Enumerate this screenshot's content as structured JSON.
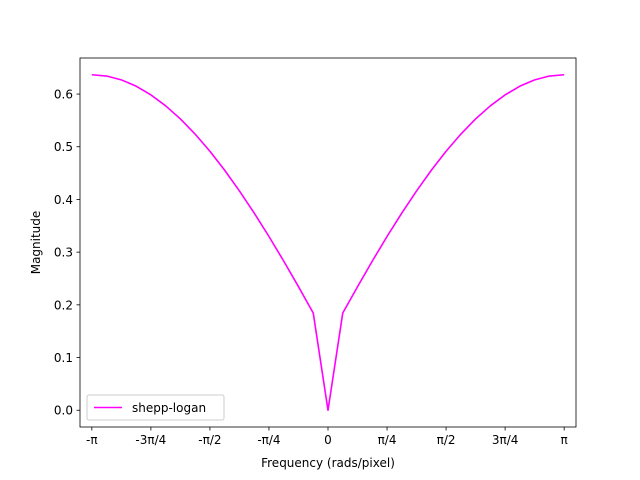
{
  "chart_data": {
    "type": "line",
    "xlabel": "Frequency (rads/pixel)",
    "ylabel": "Magnitude",
    "xlim": [
      -3.299,
      3.299
    ],
    "ylim": [
      -0.0318,
      0.6684
    ],
    "x_ticks": [
      {
        "value": -3.14159265,
        "label": "-π"
      },
      {
        "value": -2.35619449,
        "label": "-3π/4"
      },
      {
        "value": -1.57079633,
        "label": "-π/2"
      },
      {
        "value": -0.78539816,
        "label": "-π/4"
      },
      {
        "value": 0,
        "label": "0"
      },
      {
        "value": 0.78539816,
        "label": "π/4"
      },
      {
        "value": 1.57079633,
        "label": "π/2"
      },
      {
        "value": 2.35619449,
        "label": "3π/4"
      },
      {
        "value": 3.14159265,
        "label": "π"
      }
    ],
    "y_ticks": [
      {
        "value": 0.0,
        "label": "0.0"
      },
      {
        "value": 0.1,
        "label": "0.1"
      },
      {
        "value": 0.2,
        "label": "0.2"
      },
      {
        "value": 0.3,
        "label": "0.3"
      },
      {
        "value": 0.4,
        "label": "0.4"
      },
      {
        "value": 0.5,
        "label": "0.5"
      },
      {
        "value": 0.6,
        "label": "0.6"
      }
    ],
    "grid": false,
    "legend_position": "lower-left",
    "series": [
      {
        "name": "shepp-logan",
        "color": "#ff00ff",
        "x": [
          -3.1416,
          -2.9452,
          -2.7489,
          -2.5525,
          -2.3562,
          -2.1598,
          -1.9635,
          -1.7671,
          -1.5708,
          -1.3744,
          -1.1781,
          -0.9817,
          -0.7854,
          -0.589,
          -0.3927,
          -0.1963,
          0.0,
          0.1963,
          0.3927,
          0.589,
          0.7854,
          0.9817,
          1.1781,
          1.3744,
          1.5708,
          1.7671,
          1.9635,
          2.1598,
          2.3562,
          2.5525,
          2.7489,
          2.9452,
          3.1416
        ],
        "y": [
          0.6366,
          0.6342,
          0.6269,
          0.615,
          0.5985,
          0.5777,
          0.5528,
          0.5239,
          0.4914,
          0.4554,
          0.4162,
          0.3742,
          0.3297,
          0.283,
          0.2344,
          0.1845,
          0.0,
          0.1845,
          0.2344,
          0.283,
          0.3297,
          0.3742,
          0.4162,
          0.4554,
          0.4914,
          0.5239,
          0.5528,
          0.5777,
          0.5985,
          0.615,
          0.6269,
          0.6342,
          0.6366
        ]
      }
    ]
  }
}
